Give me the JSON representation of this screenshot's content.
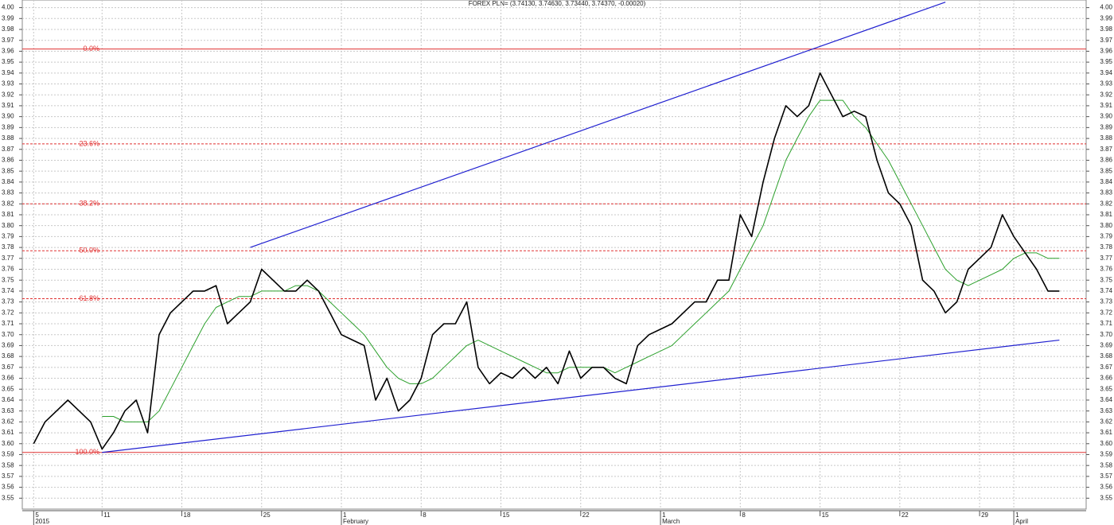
{
  "chart_data": {
    "type": "line",
    "title": "FOREX PLN= (3.74130, 3.74630, 3.73440, 3.74370, -0.00020)",
    "x": [
      "2015-01-05",
      "2015-01-06",
      "2015-01-07",
      "2015-01-08",
      "2015-01-09",
      "2015-01-10",
      "2015-01-11",
      "2015-01-12",
      "2015-01-13",
      "2015-01-14",
      "2015-01-15",
      "2015-01-16",
      "2015-01-17",
      "2015-01-18",
      "2015-01-19",
      "2015-01-20",
      "2015-01-21",
      "2015-01-22",
      "2015-01-23",
      "2015-01-24",
      "2015-01-25",
      "2015-01-26",
      "2015-01-27",
      "2015-01-28",
      "2015-01-29",
      "2015-01-30",
      "2015-01-31",
      "2015-02-01",
      "2015-02-02",
      "2015-02-03",
      "2015-02-04",
      "2015-02-05",
      "2015-02-06",
      "2015-02-07",
      "2015-02-08",
      "2015-02-09",
      "2015-02-10",
      "2015-02-11",
      "2015-02-12",
      "2015-02-13",
      "2015-02-14",
      "2015-02-15",
      "2015-02-16",
      "2015-02-17",
      "2015-02-18",
      "2015-02-19",
      "2015-02-20",
      "2015-02-21",
      "2015-02-22",
      "2015-02-23",
      "2015-02-24",
      "2015-02-25",
      "2015-02-26",
      "2015-02-27",
      "2015-02-28",
      "2015-03-01",
      "2015-03-02",
      "2015-03-03",
      "2015-03-04",
      "2015-03-05",
      "2015-03-06",
      "2015-03-07",
      "2015-03-08",
      "2015-03-09",
      "2015-03-10",
      "2015-03-11",
      "2015-03-12",
      "2015-03-13",
      "2015-03-14",
      "2015-03-15",
      "2015-03-16",
      "2015-03-17",
      "2015-03-18",
      "2015-03-19",
      "2015-03-20",
      "2015-03-21",
      "2015-03-22",
      "2015-03-23",
      "2015-03-24",
      "2015-03-25",
      "2015-03-26",
      "2015-03-27",
      "2015-03-28",
      "2015-03-29",
      "2015-03-30",
      "2015-03-31",
      "2015-04-01",
      "2015-04-02",
      "2015-04-03",
      "2015-04-04",
      "2015-04-05"
    ],
    "series": [
      {
        "color": "#000000",
        "values": [
          3.6,
          3.62,
          3.63,
          3.64,
          3.63,
          3.62,
          3.595,
          3.61,
          3.63,
          3.64,
          3.61,
          3.7,
          3.72,
          3.73,
          3.74,
          3.74,
          3.745,
          3.71,
          3.72,
          3.73,
          3.76,
          3.75,
          3.74,
          3.74,
          3.75,
          3.74,
          3.72,
          3.7,
          3.695,
          3.69,
          3.64,
          3.66,
          3.63,
          3.64,
          3.66,
          3.7,
          3.71,
          3.71,
          3.73,
          3.67,
          3.655,
          3.665,
          3.66,
          3.67,
          3.66,
          3.67,
          3.655,
          3.685,
          3.66,
          3.67,
          3.67,
          3.66,
          3.655,
          3.69,
          3.7,
          3.705,
          3.71,
          3.72,
          3.73,
          3.73,
          3.75,
          3.75,
          3.81,
          3.79,
          3.84,
          3.88,
          3.91,
          3.9,
          3.91,
          3.94,
          3.92,
          3.9,
          3.905,
          3.9,
          3.86,
          3.83,
          3.82,
          3.8,
          3.75,
          3.74,
          3.72,
          3.73,
          3.76,
          3.77,
          3.78,
          3.81,
          3.79,
          3.775,
          3.76,
          3.74,
          3.74
        ]
      },
      {
        "color": "#2ca02c",
        "values": [
          null,
          null,
          null,
          null,
          null,
          null,
          3.625,
          3.625,
          3.62,
          3.62,
          3.62,
          3.63,
          3.65,
          3.67,
          3.69,
          3.71,
          3.725,
          3.73,
          3.735,
          3.735,
          3.74,
          3.74,
          3.74,
          3.745,
          3.745,
          3.74,
          3.73,
          3.72,
          3.71,
          3.7,
          3.685,
          3.67,
          3.66,
          3.655,
          3.655,
          3.66,
          3.67,
          3.68,
          3.69,
          3.695,
          3.69,
          3.685,
          3.68,
          3.675,
          3.67,
          3.665,
          3.665,
          3.67,
          3.67,
          3.67,
          3.67,
          3.665,
          3.67,
          3.675,
          3.68,
          3.685,
          3.69,
          3.7,
          3.71,
          3.72,
          3.73,
          3.74,
          3.76,
          3.78,
          3.8,
          3.83,
          3.86,
          3.88,
          3.9,
          3.915,
          3.915,
          3.915,
          3.9,
          3.89,
          3.875,
          3.86,
          3.84,
          3.82,
          3.8,
          3.78,
          3.76,
          3.75,
          3.745,
          3.75,
          3.755,
          3.76,
          3.77,
          3.775,
          3.775,
          3.77,
          3.77
        ]
      }
    ],
    "fib_color": "#e03030",
    "fib_levels": [
      {
        "label": "0.0%",
        "value": 3.962,
        "style": "solid"
      },
      {
        "label": "23.6%",
        "value": 3.875,
        "style": "dashed"
      },
      {
        "label": "38.2%",
        "value": 3.82,
        "style": "dashed"
      },
      {
        "label": "50.0%",
        "value": 3.777,
        "style": "dashed"
      },
      {
        "label": "61.8%",
        "value": 3.733,
        "style": "dashed"
      },
      {
        "label": "100.0%",
        "value": 3.592,
        "style": "solid"
      }
    ],
    "trendline_color": "#2020d0",
    "trendlines": [
      {
        "x": [
          "2015-01-24",
          "2015-03-26"
        ],
        "values": [
          3.78,
          4.005
        ]
      },
      {
        "x": [
          "2015-01-11",
          "2015-04-05"
        ],
        "values": [
          3.592,
          3.695
        ]
      }
    ],
    "xlim": [
      "2015-01-04",
      "2015-04-07"
    ],
    "xticks": [
      {
        "value": "2015-01-05",
        "label": "5"
      },
      {
        "value": "2015-01-11",
        "label": "11"
      },
      {
        "value": "2015-01-18",
        "label": "18"
      },
      {
        "value": "2015-01-25",
        "label": "25"
      },
      {
        "value": "2015-02-01",
        "label": "1"
      },
      {
        "value": "2015-02-08",
        "label": "8"
      },
      {
        "value": "2015-02-15",
        "label": "15"
      },
      {
        "value": "2015-02-22",
        "label": "22"
      },
      {
        "value": "2015-03-01",
        "label": "1"
      },
      {
        "value": "2015-03-08",
        "label": "8"
      },
      {
        "value": "2015-03-15",
        "label": "15"
      },
      {
        "value": "2015-03-22",
        "label": "22"
      },
      {
        "value": "2015-03-29",
        "label": "29"
      },
      {
        "value": "2015-04-01",
        "label": "1"
      }
    ],
    "x_period_labels": [
      {
        "value": "2015-01-05",
        "label": "2015"
      },
      {
        "value": "2015-02-01",
        "label": "February"
      },
      {
        "value": "2015-03-01",
        "label": "March"
      },
      {
        "value": "2015-04-01",
        "label": "April"
      }
    ],
    "ylim": [
      3.54,
      4.007
    ],
    "yticks": [
      3.55,
      3.56,
      3.57,
      3.58,
      3.59,
      {
        "value": 3.6,
        "label": "3.60"
      },
      3.61,
      3.62,
      3.63,
      3.64,
      3.65,
      3.66,
      3.67,
      3.68,
      3.69,
      {
        "value": 3.7,
        "label": "3.70"
      },
      3.71,
      3.72,
      3.73,
      3.74,
      3.75,
      3.76,
      3.77,
      3.78,
      3.79,
      {
        "value": 3.8,
        "label": "3.80"
      },
      3.81,
      3.82,
      3.83,
      3.84,
      3.85,
      3.86,
      3.87,
      3.88,
      3.89,
      {
        "value": 3.9,
        "label": "3.90"
      },
      3.91,
      3.92,
      3.93,
      3.94,
      3.95,
      3.96,
      3.97,
      3.98,
      3.99,
      {
        "value": 4,
        "label": "4.00"
      }
    ],
    "grid": true
  }
}
